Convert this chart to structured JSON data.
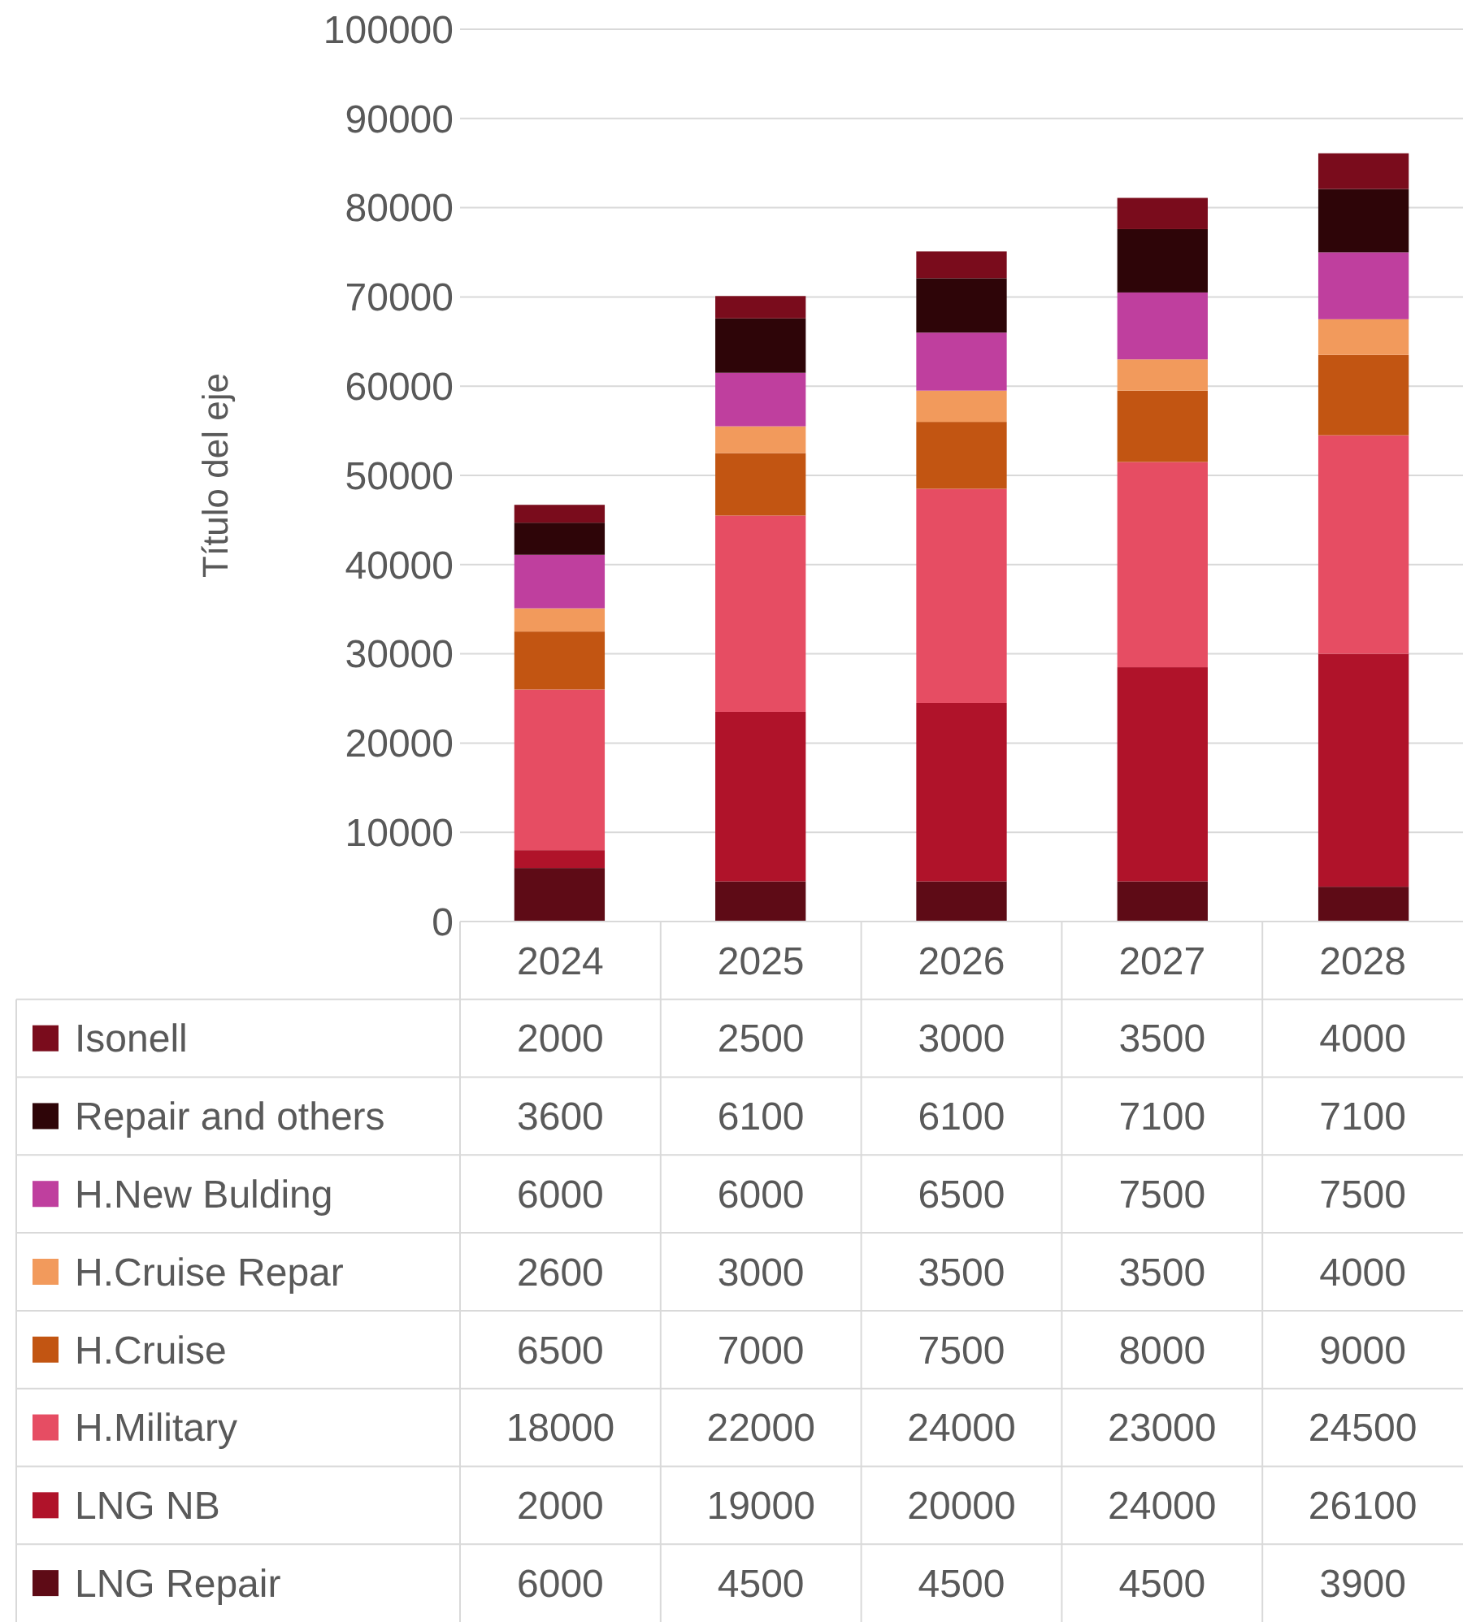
{
  "chart_data": {
    "type": "bar",
    "stacked": true,
    "ylabel": "Título del eje",
    "categories": [
      "2024",
      "2025",
      "2026",
      "2027",
      "2028"
    ],
    "series": [
      {
        "name": "LNG Repair",
        "color": "#5e0b16",
        "values": [
          6000,
          4500,
          4500,
          4500,
          3900
        ]
      },
      {
        "name": "LNG NB",
        "color": "#b0132a",
        "values": [
          2000,
          19000,
          20000,
          24000,
          26100
        ]
      },
      {
        "name": "H.Military",
        "color": "#e64d63",
        "values": [
          18000,
          22000,
          24000,
          23000,
          24500
        ]
      },
      {
        "name": "H.Cruise",
        "color": "#c25512",
        "values": [
          6500,
          7000,
          7500,
          8000,
          9000
        ]
      },
      {
        "name": "H.Cruise Repar",
        "color": "#f29a5c",
        "values": [
          2600,
          3000,
          3500,
          3500,
          4000
        ]
      },
      {
        "name": "H.New Bulding",
        "color": "#bf3f9e",
        "values": [
          6000,
          6000,
          6500,
          7500,
          7500
        ]
      },
      {
        "name": "Repair and others",
        "color": "#2e0508",
        "values": [
          3600,
          6100,
          6100,
          7100,
          7100
        ]
      },
      {
        "name": "Isonell",
        "color": "#7a0c1c",
        "values": [
          2000,
          2500,
          3000,
          3500,
          4000
        ]
      }
    ],
    "ylim": [
      0,
      100000
    ],
    "yticks": [
      0,
      10000,
      20000,
      30000,
      40000,
      50000,
      60000,
      70000,
      80000,
      90000,
      100000
    ],
    "grid": "y",
    "legend": "bottom",
    "data_labels": true
  }
}
